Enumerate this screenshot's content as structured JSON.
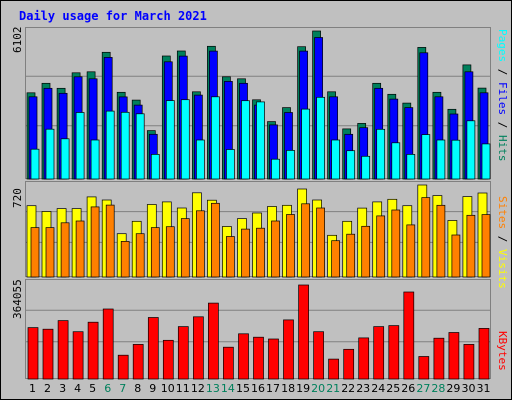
{
  "chart_data": {
    "type": "bar",
    "title": "Daily usage for March 2021",
    "categories": [
      "1",
      "2",
      "3",
      "4",
      "5",
      "6",
      "7",
      "8",
      "9",
      "10",
      "11",
      "12",
      "13",
      "14",
      "15",
      "16",
      "17",
      "18",
      "19",
      "20",
      "21",
      "22",
      "23",
      "24",
      "25",
      "26",
      "27",
      "28",
      "29",
      "30",
      "31"
    ],
    "weekend_days": [
      "6",
      "7",
      "13",
      "14",
      "20",
      "21",
      "27",
      "28"
    ],
    "colors": {
      "hits": "#00805c",
      "files": "#0000ff",
      "pages": "#00ffff",
      "visits": "#ffff00",
      "sites": "#ff8000",
      "kbytes": "#ff0000",
      "title": "#0000ff",
      "weekend_label": "#00805c",
      "weekday_label": "#000000",
      "background": "#c0c0c0"
    },
    "panels": [
      {
        "id": "hits-files-pages",
        "axis_max_label": "6102",
        "ymax": 6102,
        "right_label_parts": [
          {
            "text": "Pages",
            "color": "#00ffff"
          },
          {
            "text": " / ",
            "color": "#000000"
          },
          {
            "text": "Files",
            "color": "#0000ff"
          },
          {
            "text": " / ",
            "color": "#000000"
          },
          {
            "text": "Hits",
            "color": "#00805c"
          }
        ],
        "series": [
          {
            "name": "Hits",
            "values": [
              3553,
              3945,
              3739,
              4379,
              4420,
              5224,
              3574,
              3253,
              1997,
              5073,
              5276,
              3594,
              5471,
              4215,
              4133,
              3265,
              2365,
              2943,
              5454,
              6102,
              3595,
              2065,
              2293,
              3945,
              3492,
              3130,
              5427,
              3574,
              2874,
              4706,
              3749
            ]
          },
          {
            "name": "Files",
            "values": [
              3390,
              3739,
              3532,
              4215,
              4133,
              5012,
              3386,
              3048,
              1843,
              4833,
              5068,
              3459,
              5273,
              4026,
              3945,
              3048,
              2232,
              2740,
              5273,
              5835,
              3390,
              1843,
              2116,
              3739,
              3293,
              2943,
              5202,
              3390,
              2679,
              4420,
              3553
            ]
          },
          {
            "name": "Pages",
            "values": [
              1227,
              2054,
              1658,
              2743,
              1609,
              2799,
              2749,
              2688,
              1016,
              3231,
              3271,
              1609,
              3388,
              1218,
              3229,
              3178,
              818,
              1180,
              2882,
              3367,
              1609,
              1167,
              935,
              2050,
              1492,
              1016,
              1831,
              1609,
              1598,
              2398,
              1446
            ]
          }
        ]
      },
      {
        "id": "visits-sites",
        "axis_max_label": "720",
        "ymax": 720,
        "right_label_parts": [
          {
            "text": "Sites",
            "color": "#ff8000"
          },
          {
            "text": " / ",
            "color": "#000000"
          },
          {
            "text": "Visits",
            "color": "#ffff00"
          }
        ],
        "series": [
          {
            "name": "Visits",
            "values": [
              558,
              513,
              535,
              535,
              627,
              603,
              339,
              436,
              567,
              588,
              540,
              659,
              601,
              395,
              457,
              501,
              552,
              561,
              689,
              603,
              326,
              436,
              539,
              588,
              608,
              558,
              720,
              637,
              442,
              629,
              657
            ]
          },
          {
            "name": "Sites",
            "values": [
              387,
              387,
              424,
              438,
              549,
              563,
              279,
              339,
              387,
              394,
              457,
              518,
              577,
              317,
              375,
              382,
              438,
              489,
              573,
              540,
              284,
              335,
              397,
              478,
              524,
              408,
              621,
              561,
              329,
              483,
              488
            ]
          }
        ]
      },
      {
        "id": "kbytes",
        "axis_max_label": "364055",
        "ymax": 364055,
        "right_label_parts": [
          {
            "text": "KBytes",
            "color": "#ff0000"
          }
        ],
        "series": [
          {
            "name": "KBytes",
            "values": [
              199000,
              193000,
              226000,
              183000,
              220000,
              271000,
              92000,
              134000,
              238000,
              150000,
              203000,
              241000,
              294000,
              123000,
              175000,
              162000,
              155000,
              229000,
              364055,
              183000,
              77000,
              115000,
              159000,
              203000,
              207000,
              337000,
              87000,
              158000,
              180000,
              134000,
              196000
            ]
          }
        ]
      }
    ]
  }
}
